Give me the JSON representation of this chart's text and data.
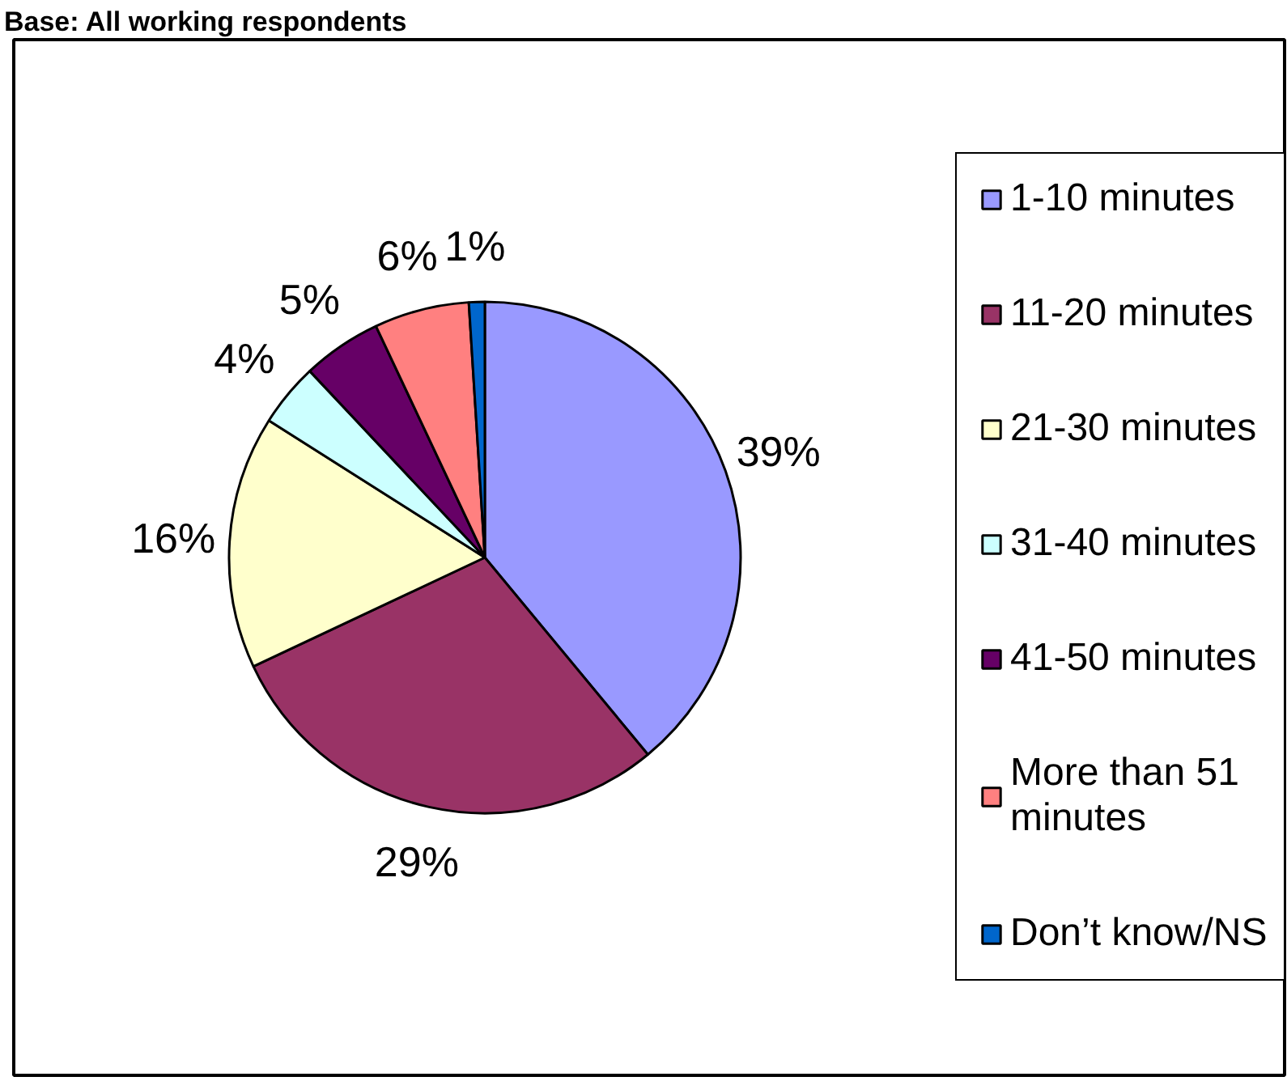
{
  "chart_data": {
    "type": "pie",
    "title": "Base: All working respondents",
    "categories": [
      "1-10 minutes",
      "11-20 minutes",
      "21-30 minutes",
      "31-40 minutes",
      "41-50 minutes",
      "More than 51 minutes",
      "Don’t know/NS"
    ],
    "values": [
      39,
      29,
      16,
      4,
      5,
      6,
      1
    ],
    "value_labels": [
      "39%",
      "29%",
      "16%",
      "4%",
      "5%",
      "6%",
      "1%"
    ],
    "colors": [
      "#9999ff",
      "#993366",
      "#ffffcc",
      "#ccffff",
      "#660066",
      "#ff8080",
      "#0066cc"
    ],
    "legend": "right"
  }
}
